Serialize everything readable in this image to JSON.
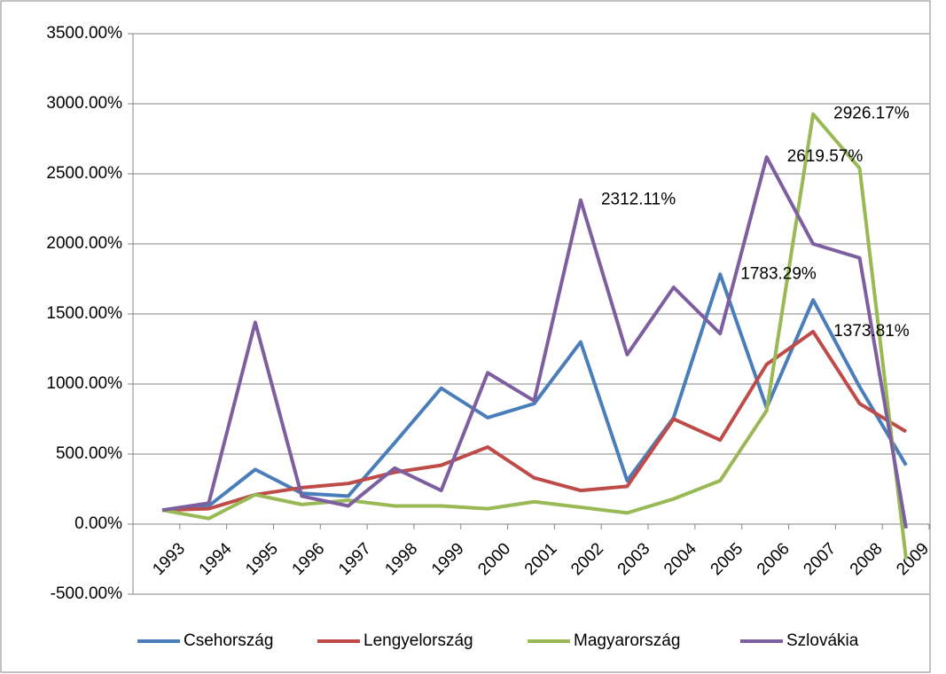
{
  "chart_data": {
    "type": "line",
    "categories": [
      "1993",
      "1994",
      "1995",
      "1996",
      "1997",
      "1998",
      "1999",
      "2000",
      "2001",
      "2002",
      "2003",
      "2004",
      "2005",
      "2006",
      "2007",
      "2008",
      "2009"
    ],
    "series": [
      {
        "name": "Csehország",
        "color": "#4a7ebb",
        "values": [
          100,
          130,
          390,
          220,
          200,
          580,
          970,
          760,
          860,
          1300,
          310,
          760,
          1783.29,
          830,
          1600,
          980,
          420
        ],
        "value_labels": [
          null,
          null,
          null,
          null,
          null,
          null,
          null,
          null,
          null,
          null,
          null,
          null,
          "1783.29%",
          null,
          null,
          null,
          null
        ]
      },
      {
        "name": "Lengyelország",
        "color": "#be4b48",
        "values": [
          100,
          110,
          210,
          260,
          290,
          370,
          420,
          550,
          330,
          240,
          270,
          750,
          600,
          1140,
          1373.81,
          860,
          660
        ],
        "value_labels": [
          null,
          null,
          null,
          null,
          null,
          null,
          null,
          null,
          null,
          null,
          null,
          null,
          null,
          null,
          "1373.81%",
          null,
          null
        ]
      },
      {
        "name": "Magyarország",
        "color": "#98b954",
        "values": [
          100,
          40,
          210,
          140,
          170,
          130,
          130,
          110,
          160,
          120,
          80,
          180,
          310,
          810,
          2926.17,
          2540,
          -250
        ],
        "value_labels": [
          null,
          null,
          null,
          null,
          null,
          null,
          null,
          null,
          null,
          null,
          null,
          null,
          null,
          null,
          "2926.17%",
          null,
          null
        ]
      },
      {
        "name": "Szlovákia",
        "color": "#7d5fa0",
        "values": [
          100,
          150,
          1440,
          200,
          130,
          400,
          240,
          1080,
          880,
          2312.11,
          1210,
          1690,
          1360,
          2619.57,
          2000,
          1900,
          -30
        ],
        "value_labels": [
          null,
          null,
          null,
          null,
          null,
          null,
          null,
          null,
          null,
          "2312.11%",
          null,
          null,
          null,
          "2619.57%",
          null,
          null,
          null
        ]
      }
    ],
    "ylim": [
      -500,
      3500
    ],
    "yticks": [
      {
        "value": -500,
        "label": "-500.00%"
      },
      {
        "value": 0,
        "label": "0.00%"
      },
      {
        "value": 500,
        "label": "500.00%"
      },
      {
        "value": 1000,
        "label": "1000.00%"
      },
      {
        "value": 1500,
        "label": "1500.00%"
      },
      {
        "value": 2000,
        "label": "2000.00%"
      },
      {
        "value": 2500,
        "label": "2500.00%"
      },
      {
        "value": 3000,
        "label": "3000.00%"
      },
      {
        "value": 3500,
        "label": "3500.00%"
      }
    ],
    "grid": true,
    "legend": "bottom"
  }
}
